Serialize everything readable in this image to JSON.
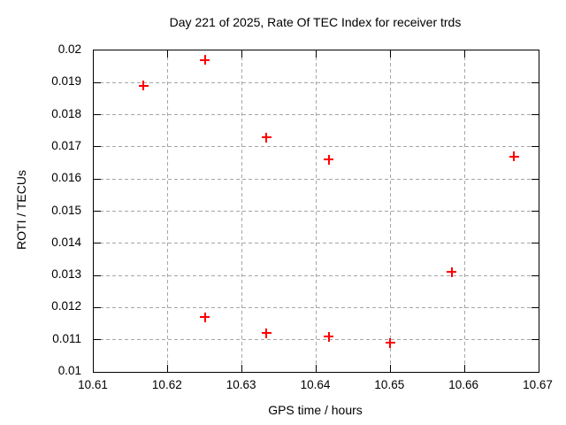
{
  "chart_data": {
    "type": "scatter",
    "title": "Day 221 of 2025, Rate Of TEC Index for receiver trds",
    "xlabel": "GPS time / hours",
    "ylabel": "ROTI / TECUs",
    "xlim": [
      10.61,
      10.67
    ],
    "ylim": [
      0.01,
      0.02
    ],
    "xtick_labels": [
      "10.61",
      "10.62",
      "10.63",
      "10.64",
      "10.65",
      "10.66",
      "10.67"
    ],
    "ytick_labels": [
      "0.01",
      "0.011",
      "0.012",
      "0.013",
      "0.014",
      "0.015",
      "0.016",
      "0.017",
      "0.018",
      "0.019",
      "0.02"
    ],
    "grid": true,
    "legend": "none",
    "series": [
      {
        "marker": "plus",
        "color": "#ff0000",
        "points": [
          [
            10.6167,
            0.0189
          ],
          [
            10.625,
            0.0197
          ],
          [
            10.625,
            0.0117
          ],
          [
            10.6333,
            0.0173
          ],
          [
            10.6333,
            0.0112
          ],
          [
            10.6417,
            0.0166
          ],
          [
            10.6417,
            0.0111
          ],
          [
            10.65,
            0.0109
          ],
          [
            10.6583,
            0.0131
          ],
          [
            10.6667,
            0.0167
          ]
        ]
      }
    ],
    "colors": {
      "marker": "#ff0000",
      "grid": "#a6a6a6",
      "border": "#000000",
      "text": "#000000",
      "background": "#ffffff"
    }
  }
}
